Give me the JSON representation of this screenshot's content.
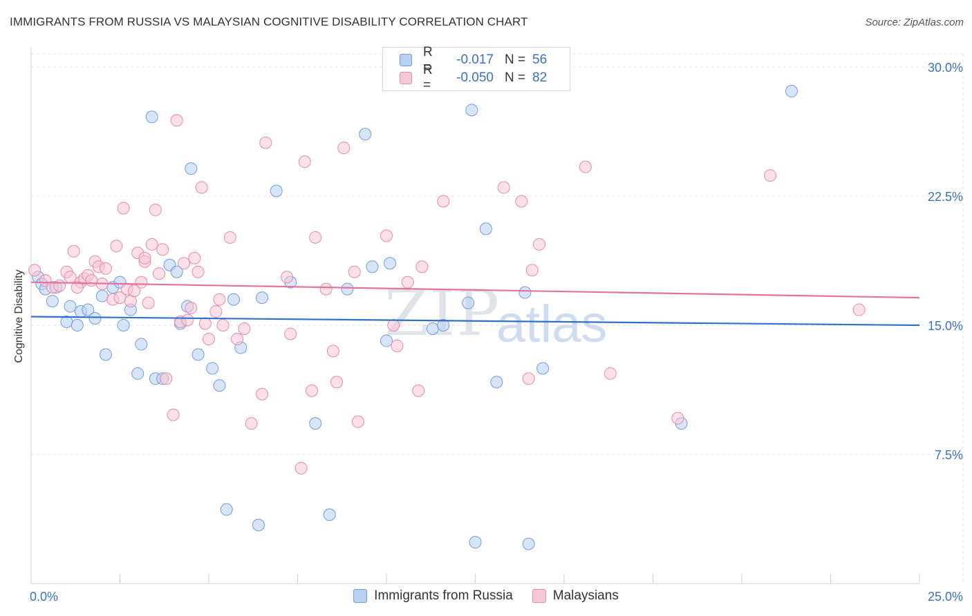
{
  "title": "IMMIGRANTS FROM RUSSIA VS MALAYSIAN COGNITIVE DISABILITY CORRELATION CHART",
  "source": "Source: ZipAtlas.com",
  "watermark": {
    "zip": "ZIP",
    "atlas": "atlas"
  },
  "legend": {
    "rows": [
      {
        "r_label": "R =",
        "r_value": "-0.017",
        "n_label": "N =",
        "n_value": "56"
      },
      {
        "r_label": "R =",
        "r_value": "-0.050",
        "n_label": "N =",
        "n_value": "82"
      }
    ]
  },
  "colors": {
    "blue_fill": "#b8d0f2",
    "blue_stroke": "#6f9de0",
    "blue_line": "#2e72c8",
    "pink_fill": "#f8c7d7",
    "pink_stroke": "#e68aa8",
    "pink_line": "#e4739c",
    "tick_label": "#3a72c4",
    "grid": "#e2e2e2"
  },
  "chart_data": {
    "type": "scatter",
    "title": "IMMIGRANTS FROM RUSSIA VS MALAYSIAN COGNITIVE DISABILITY CORRELATION CHART",
    "xlabel": "",
    "ylabel": "Cognitive Disability",
    "xlim": [
      0,
      25
    ],
    "ylim": [
      0,
      30
    ],
    "x_tick_labels": [
      {
        "value": 0,
        "label": "0.0%"
      },
      {
        "value": 25,
        "label": "25.0%"
      }
    ],
    "y_tick_labels": [
      {
        "value": 7.5,
        "label": "7.5%"
      },
      {
        "value": 15,
        "label": "15.0%"
      },
      {
        "value": 22.5,
        "label": "22.5%"
      },
      {
        "value": 30,
        "label": "30.0%"
      }
    ],
    "grid": true,
    "legend_position": "top-center",
    "series": [
      {
        "name": "Immigrants from Russia",
        "color": "blue",
        "trend": [
          [
            0,
            15.5
          ],
          [
            25,
            15.0
          ]
        ],
        "points": [
          [
            0.2,
            17.8
          ],
          [
            0.3,
            17.4
          ],
          [
            0.4,
            17.1
          ],
          [
            0.6,
            16.4
          ],
          [
            0.7,
            17.2
          ],
          [
            1.0,
            15.2
          ],
          [
            1.1,
            16.1
          ],
          [
            1.3,
            15.0
          ],
          [
            1.4,
            15.8
          ],
          [
            1.6,
            15.9
          ],
          [
            1.8,
            15.4
          ],
          [
            2.0,
            16.7
          ],
          [
            2.1,
            13.3
          ],
          [
            2.3,
            17.2
          ],
          [
            2.5,
            17.5
          ],
          [
            2.6,
            15.0
          ],
          [
            2.8,
            15.9
          ],
          [
            3.0,
            12.2
          ],
          [
            3.1,
            13.9
          ],
          [
            3.4,
            27.1
          ],
          [
            3.5,
            11.9
          ],
          [
            3.7,
            11.9
          ],
          [
            3.9,
            18.5
          ],
          [
            4.1,
            18.1
          ],
          [
            4.2,
            15.1
          ],
          [
            4.4,
            16.1
          ],
          [
            4.5,
            24.1
          ],
          [
            4.7,
            13.3
          ],
          [
            5.1,
            12.5
          ],
          [
            5.3,
            11.5
          ],
          [
            5.5,
            4.3
          ],
          [
            5.7,
            16.5
          ],
          [
            5.9,
            13.7
          ],
          [
            6.4,
            3.4
          ],
          [
            6.5,
            16.6
          ],
          [
            6.9,
            22.8
          ],
          [
            7.3,
            17.5
          ],
          [
            8.0,
            9.3
          ],
          [
            8.4,
            4.0
          ],
          [
            8.9,
            17.1
          ],
          [
            9.4,
            26.1
          ],
          [
            9.6,
            18.4
          ],
          [
            10.0,
            14.1
          ],
          [
            10.1,
            18.6
          ],
          [
            11.3,
            14.8
          ],
          [
            11.6,
            15.0
          ],
          [
            12.3,
            16.3
          ],
          [
            12.4,
            27.5
          ],
          [
            12.5,
            2.4
          ],
          [
            12.8,
            20.6
          ],
          [
            13.1,
            11.7
          ],
          [
            13.9,
            16.9
          ],
          [
            14.0,
            2.3
          ],
          [
            14.4,
            12.5
          ],
          [
            18.3,
            9.3
          ],
          [
            21.4,
            28.6
          ]
        ]
      },
      {
        "name": "Malaysians",
        "color": "pink",
        "trend": [
          [
            0,
            17.5
          ],
          [
            25,
            16.6
          ]
        ],
        "points": [
          [
            0.1,
            18.2
          ],
          [
            0.4,
            17.6
          ],
          [
            0.6,
            17.2
          ],
          [
            0.8,
            17.3
          ],
          [
            1.0,
            18.1
          ],
          [
            1.1,
            17.8
          ],
          [
            1.2,
            19.3
          ],
          [
            1.4,
            17.5
          ],
          [
            1.5,
            17.7
          ],
          [
            1.6,
            17.9
          ],
          [
            1.7,
            17.6
          ],
          [
            1.8,
            18.7
          ],
          [
            1.9,
            18.4
          ],
          [
            2.0,
            17.4
          ],
          [
            2.1,
            18.3
          ],
          [
            2.3,
            16.5
          ],
          [
            2.4,
            19.6
          ],
          [
            2.5,
            16.6
          ],
          [
            2.6,
            21.8
          ],
          [
            2.7,
            17.1
          ],
          [
            2.8,
            16.4
          ],
          [
            3.0,
            19.2
          ],
          [
            3.1,
            17.5
          ],
          [
            3.2,
            18.7
          ],
          [
            3.3,
            16.3
          ],
          [
            3.4,
            19.7
          ],
          [
            3.5,
            21.7
          ],
          [
            3.6,
            18.0
          ],
          [
            3.7,
            19.4
          ],
          [
            3.8,
            11.9
          ],
          [
            4.0,
            9.8
          ],
          [
            4.1,
            26.9
          ],
          [
            4.2,
            15.2
          ],
          [
            4.3,
            18.6
          ],
          [
            4.4,
            15.3
          ],
          [
            4.6,
            18.9
          ],
          [
            4.7,
            18.1
          ],
          [
            4.8,
            23.0
          ],
          [
            4.9,
            15.1
          ],
          [
            5.0,
            14.2
          ],
          [
            5.2,
            15.8
          ],
          [
            5.3,
            16.5
          ],
          [
            5.4,
            15.0
          ],
          [
            5.6,
            20.1
          ],
          [
            5.8,
            14.2
          ],
          [
            6.0,
            14.8
          ],
          [
            6.2,
            9.3
          ],
          [
            6.5,
            11.0
          ],
          [
            6.6,
            25.6
          ],
          [
            7.2,
            17.8
          ],
          [
            7.3,
            14.5
          ],
          [
            7.6,
            6.7
          ],
          [
            7.7,
            24.5
          ],
          [
            7.9,
            11.2
          ],
          [
            8.0,
            20.1
          ],
          [
            8.3,
            17.1
          ],
          [
            8.5,
            13.5
          ],
          [
            8.6,
            11.7
          ],
          [
            8.8,
            25.3
          ],
          [
            9.1,
            18.1
          ],
          [
            9.2,
            9.4
          ],
          [
            10.0,
            20.2
          ],
          [
            10.2,
            15.0
          ],
          [
            10.3,
            13.8
          ],
          [
            10.6,
            17.5
          ],
          [
            10.9,
            11.2
          ],
          [
            11.0,
            18.4
          ],
          [
            11.6,
            22.2
          ],
          [
            13.3,
            23.0
          ],
          [
            13.8,
            22.2
          ],
          [
            14.0,
            11.9
          ],
          [
            14.1,
            18.2
          ],
          [
            14.3,
            19.7
          ],
          [
            15.6,
            24.2
          ],
          [
            16.3,
            12.2
          ],
          [
            18.2,
            9.6
          ],
          [
            20.8,
            23.7
          ],
          [
            23.3,
            15.9
          ],
          [
            2.9,
            17.0
          ],
          [
            1.3,
            17.2
          ],
          [
            4.5,
            16.0
          ],
          [
            3.2,
            18.9
          ]
        ]
      }
    ]
  },
  "bottom_legend": [
    {
      "label": "Immigrants from Russia"
    },
    {
      "label": "Malaysians"
    }
  ]
}
